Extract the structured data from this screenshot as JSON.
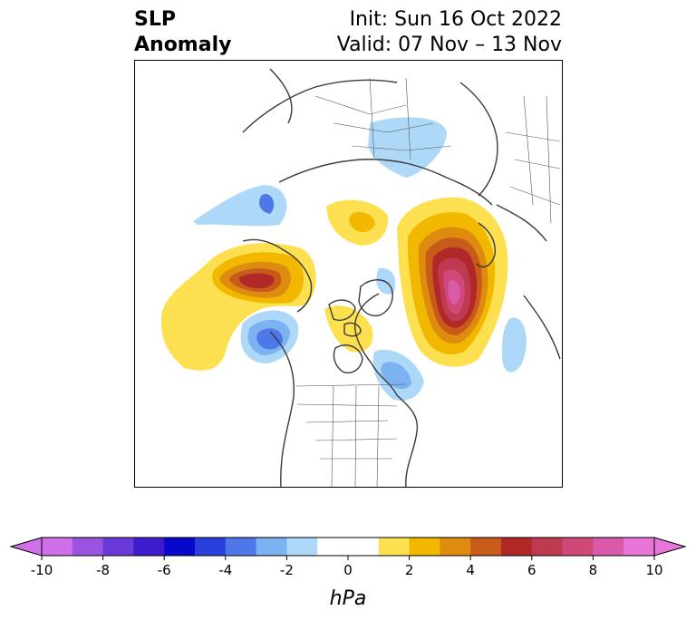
{
  "title": {
    "variable_line1": "SLP",
    "variable_line2": "Anomaly",
    "init": "Init: Sun 16 Oct 2022",
    "valid": "Valid: 07 Nov – 13 Nov"
  },
  "colorbar": {
    "unit_label": "hPa",
    "tick_labels": [
      "-10",
      "-8",
      "-6",
      "-4",
      "-2",
      "0",
      "2",
      "4",
      "6",
      "8",
      "10"
    ],
    "colors": [
      "#d070e8",
      "#9a55e0",
      "#6a3ad8",
      "#3c1ccc",
      "#0808cc",
      "#2a40dc",
      "#4e78e8",
      "#7ab2f2",
      "#aed8f8",
      "#ffffff",
      "#ffffff",
      "#fde050",
      "#f2b800",
      "#de8c10",
      "#c85a1a",
      "#b02828",
      "#be3a50",
      "#d04878",
      "#d85aa8",
      "#e875d8"
    ],
    "min_arrow_color": "#d070e8",
    "max_arrow_color": "#e875d8"
  },
  "map": {
    "projection": "north-polar-stereographic",
    "notable_features": [
      {
        "name": "high-anomaly-siberia",
        "value_max": 10
      },
      {
        "name": "high-anomaly-gulf-of-alaska-bering",
        "value_max": 6
      },
      {
        "name": "low-anomaly-northeast-pacific",
        "value_min": -5
      },
      {
        "name": "low-anomaly-labrador-sea",
        "value_min": -4
      }
    ]
  }
}
